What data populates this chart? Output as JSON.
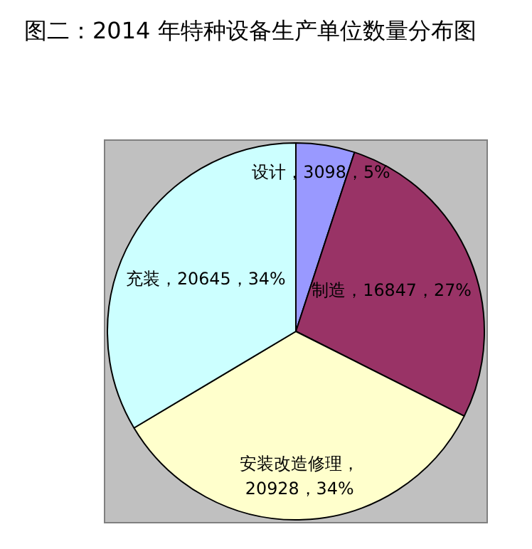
{
  "chart_data": {
    "type": "pie",
    "title": "图二：2014 年特种设备生产单位数量分布图",
    "categories": [
      "设计",
      "制造",
      "安装改造修理",
      "充装"
    ],
    "values": [
      3098,
      16847,
      20928,
      20645
    ],
    "colors": [
      "#9999ff",
      "#993366",
      "#ffffcc",
      "#ccffff"
    ],
    "value_labels": [
      "，3098，5%",
      "，16847，27%",
      "，20928，34%",
      "，20645，34%"
    ],
    "legend": false
  }
}
